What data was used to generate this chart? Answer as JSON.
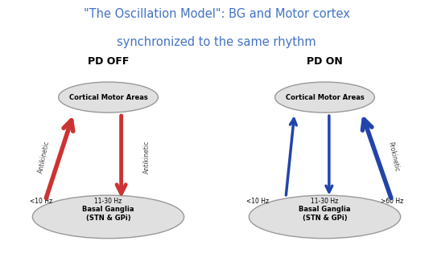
{
  "title_line1": "\"The Oscillation Model\": BG and Motor cortex",
  "title_line2": "synchronized to the same rhythm",
  "title_color": "#4472C4",
  "title_fontsize": 10.5,
  "background_color": "#ffffff",
  "ellipse_facecolor": "#e0e0e0",
  "ellipse_edgecolor": "#999999",
  "panel_left_label": "PD OFF",
  "panel_right_label": "PD ON",
  "panel_label_fontsize": 9,
  "panel_label_color": "#000000",
  "red_color": "#cc3333",
  "blue_color": "#2244aa",
  "cortex_label": "Cortical Motor Areas",
  "bg_label_line1": "Basal Ganglia",
  "bg_label_line2": "(STN & GPi)",
  "freq_11_30": "11-30 Hz",
  "freq_lt10": "<10 Hz",
  "freq_gt60": ">60 Hz",
  "antikinetic_label": "Antikinetic",
  "prokinetic_label": "Prokinetic"
}
